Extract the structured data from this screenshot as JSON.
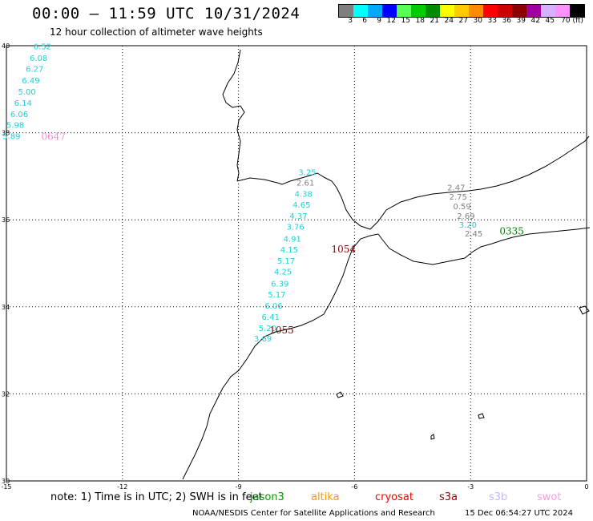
{
  "header": {
    "title": "00:00 – 11:59 UTC 10/31/2024",
    "subtitle": "12 hour collection of altimeter wave heights"
  },
  "colorbar": {
    "colors": [
      "#7f7f7f",
      "#00ffff",
      "#00a8ff",
      "#0000ff",
      "#59ff59",
      "#00cc00",
      "#008c00",
      "#ffff00",
      "#ffcc00",
      "#ff8c00",
      "#ff0000",
      "#cc0000",
      "#8c0000",
      "#a000a0",
      "#d7b0ff",
      "#ff90ff",
      "#000000"
    ],
    "labels": [
      "3",
      "6",
      "9",
      "12",
      "15",
      "18",
      "21",
      "24",
      "27",
      "30",
      "33",
      "36",
      "39",
      "42",
      "45",
      "70 (ft)"
    ]
  },
  "map": {
    "lat_min": 30,
    "lat_max": 40,
    "lon_min": -15,
    "lon_max": 0,
    "lat_ticks": [
      "40",
      "38",
      "36",
      "34",
      "32",
      "30"
    ],
    "lon_ticks": [
      "-15",
      "-12",
      "-9",
      "-6",
      "-3",
      "0"
    ],
    "wave_heights": [
      {
        "v": "6.52",
        "lon": -14.3,
        "lat": 39.92,
        "color": "#1bd1d8"
      },
      {
        "v": "6.08",
        "lon": -14.4,
        "lat": 39.65,
        "color": "#1bd1d8"
      },
      {
        "v": "6.27",
        "lon": -14.5,
        "lat": 39.4,
        "color": "#1bd1d8"
      },
      {
        "v": "6.49",
        "lon": -14.6,
        "lat": 39.13,
        "color": "#1bd1d8"
      },
      {
        "v": "5.00",
        "lon": -14.7,
        "lat": 38.88,
        "color": "#1bd1d8"
      },
      {
        "v": "6.14",
        "lon": -14.8,
        "lat": 38.62,
        "color": "#1bd1d8"
      },
      {
        "v": "6.06",
        "lon": -14.9,
        "lat": 38.36,
        "color": "#1bd1d8"
      },
      {
        "v": "5.98",
        "lon": -15.0,
        "lat": 38.11,
        "color": "#1bd1d8"
      },
      {
        "v": "5.89",
        "lon": -15.1,
        "lat": 37.85,
        "color": "#1bd1d8"
      },
      {
        "v": "3.25",
        "lon": -7.45,
        "lat": 37.03,
        "color": "#1bd1d8"
      },
      {
        "v": "2.61",
        "lon": -7.5,
        "lat": 36.79,
        "color": "#808080"
      },
      {
        "v": "4.38",
        "lon": -7.55,
        "lat": 36.53,
        "color": "#1bd1d8"
      },
      {
        "v": "4.65",
        "lon": -7.6,
        "lat": 36.28,
        "color": "#1bd1d8"
      },
      {
        "v": "4.37",
        "lon": -7.68,
        "lat": 36.02,
        "color": "#1bd1d8"
      },
      {
        "v": "3.76",
        "lon": -7.76,
        "lat": 35.77,
        "color": "#1bd1d8"
      },
      {
        "v": "4.91",
        "lon": -7.84,
        "lat": 35.5,
        "color": "#1bd1d8"
      },
      {
        "v": "4.15",
        "lon": -7.92,
        "lat": 35.25,
        "color": "#1bd1d8"
      },
      {
        "v": "5.17",
        "lon": -8.0,
        "lat": 34.99,
        "color": "#1bd1d8"
      },
      {
        "v": "4.25",
        "lon": -8.08,
        "lat": 34.74,
        "color": "#1bd1d8"
      },
      {
        "v": "6.39",
        "lon": -8.16,
        "lat": 34.47,
        "color": "#1bd1d8"
      },
      {
        "v": "5.17",
        "lon": -8.24,
        "lat": 34.22,
        "color": "#1bd1d8"
      },
      {
        "v": "6.06",
        "lon": -8.32,
        "lat": 33.96,
        "color": "#1bd1d8"
      },
      {
        "v": "6.41",
        "lon": -8.4,
        "lat": 33.7,
        "color": "#1bd1d8"
      },
      {
        "v": "5.20",
        "lon": -8.48,
        "lat": 33.44,
        "color": "#1bd1d8"
      },
      {
        "v": "3.69",
        "lon": -8.6,
        "lat": 33.2,
        "color": "#1bd1d8"
      },
      {
        "v": "2.47",
        "lon": -3.6,
        "lat": 36.68,
        "color": "#808080"
      },
      {
        "v": "2.75",
        "lon": -3.55,
        "lat": 36.46,
        "color": "#808080"
      },
      {
        "v": "0.59",
        "lon": -3.45,
        "lat": 36.24,
        "color": "#808080"
      },
      {
        "v": "2.69",
        "lon": -3.35,
        "lat": 36.02,
        "color": "#808080"
      },
      {
        "v": "3.20",
        "lon": -3.3,
        "lat": 35.82,
        "color": "#1bd1d8"
      },
      {
        "v": "2.45",
        "lon": -3.15,
        "lat": 35.62,
        "color": "#808080"
      }
    ],
    "pass_labels": [
      {
        "text": "0647",
        "lon": -14.1,
        "lat": 37.84,
        "color": "#ff7fd9"
      },
      {
        "text": "1054",
        "lon": -6.6,
        "lat": 35.25,
        "color": "#8b0000"
      },
      {
        "text": "1055",
        "lon": -8.2,
        "lat": 33.39,
        "color": "#8b0000"
      },
      {
        "text": "0335",
        "lon": -2.25,
        "lat": 35.66,
        "color": "#008000"
      }
    ]
  },
  "footer": {
    "note": "note: 1) Time is in UTC; 2) SWH is in feet",
    "satellites": [
      {
        "name": "jason3",
        "color": "#009900"
      },
      {
        "name": "altika",
        "color": "#ff9900"
      },
      {
        "name": "cryosat",
        "color": "#ff0000"
      },
      {
        "name": "s3a",
        "color": "#990000"
      },
      {
        "name": "s3b",
        "color": "#c8b4ff"
      },
      {
        "name": "swot",
        "color": "#ff99e6"
      }
    ],
    "credit": "NOAA/NESDIS Center for Satellite Applications and Research",
    "processed": "15 Dec 06:54:27 UTC 2024"
  }
}
